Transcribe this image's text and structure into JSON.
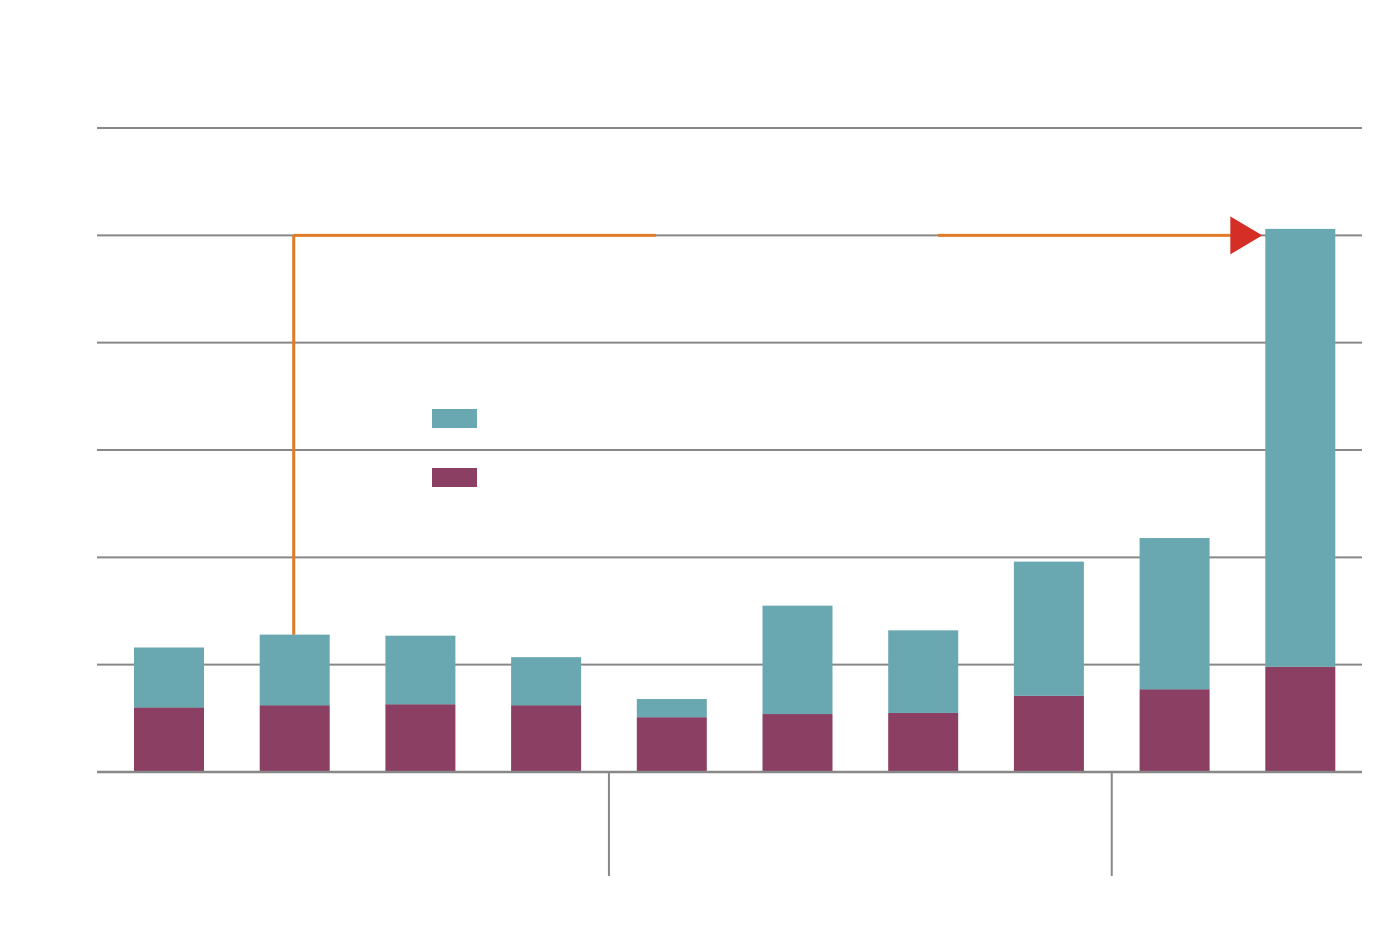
{
  "chart_data": {
    "type": "bar",
    "stacked": true,
    "title": "",
    "xlabel": "",
    "ylabel": "",
    "categories": [
      "",
      "",
      "",
      "",
      "",
      "",
      "",
      "",
      "",
      ""
    ],
    "ylim": [
      0,
      6
    ],
    "yticks": [
      0,
      1,
      2,
      3,
      4,
      5,
      6
    ],
    "grid": true,
    "legend_position": "upper-left",
    "series": [
      {
        "color": "#8b3f62",
        "values": [
          0.6,
          0.62,
          0.63,
          0.62,
          0.51,
          0.54,
          0.55,
          0.71,
          0.77,
          0.98
        ]
      },
      {
        "color": "#6aa8b1",
        "values": [
          0.56,
          0.66,
          0.64,
          0.45,
          0.17,
          1.01,
          0.77,
          1.25,
          1.41,
          4.08
        ]
      }
    ],
    "annotation": {
      "color": "#e07b2a",
      "arrow_color": "#d42e27",
      "level": 5,
      "from_category_index": 1,
      "to_category_index": 9
    }
  }
}
